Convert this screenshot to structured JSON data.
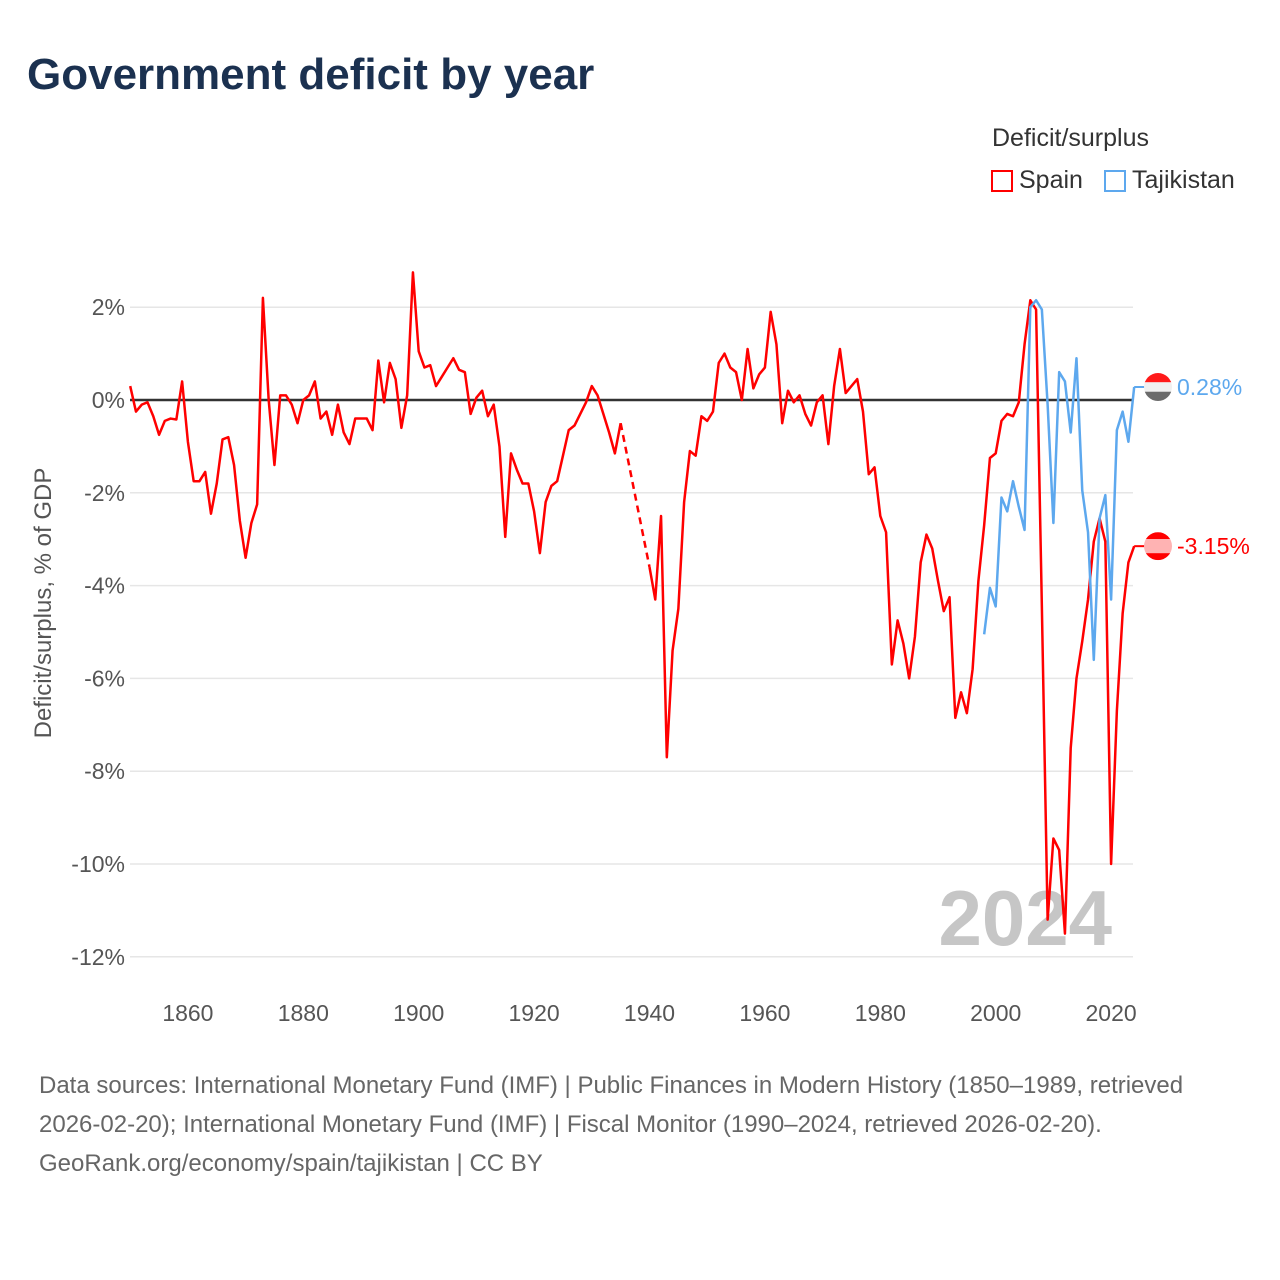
{
  "title": "Government deficit by year",
  "legend": {
    "title": "Deficit/surplus",
    "items": [
      {
        "label": "Spain",
        "color": "#ff0000"
      },
      {
        "label": "Tajikistan",
        "color": "#5da8ee"
      }
    ]
  },
  "footer": {
    "sources": "Data sources: International Monetary Fund (IMF) | Public Finances in Modern History (1850–1989, retrieved 2026-02-20); International Monetary Fund (IMF) | Fiscal Monitor (1990–2024, retrieved 2026-02-20).",
    "credit": "GeoRank.org/economy/spain/tajikistan | CC BY"
  },
  "chart_data": {
    "type": "line",
    "title": "Government deficit by year",
    "ylabel": "Deficit/surplus, % of GDP",
    "xlabel": "",
    "xlim": [
      1850,
      2024
    ],
    "ylim": [
      -12.5,
      3
    ],
    "x_ticks": [
      1860,
      1880,
      1900,
      1920,
      1940,
      1960,
      1980,
      2000,
      2020
    ],
    "y_ticks": [
      2,
      0,
      -2,
      -4,
      -6,
      -8,
      -10,
      -12
    ],
    "y_tick_labels": [
      "2%",
      "0%",
      "-2%",
      "-4%",
      "-6%",
      "-8%",
      "-10%",
      "-12%"
    ],
    "current_year_label": "2024",
    "legend_position": "top-right",
    "series": [
      {
        "name": "Spain",
        "color": "#ff0000",
        "start_year": 1850,
        "end_label": "-3.15%",
        "values": [
          0.3,
          -0.25,
          -0.1,
          -0.05,
          -0.35,
          -0.75,
          -0.45,
          -0.4,
          -0.42,
          0.4,
          -0.9,
          -1.75,
          -1.75,
          -1.55,
          -2.45,
          -1.8,
          -0.85,
          -0.8,
          -1.4,
          -2.6,
          -3.4,
          -2.65,
          -2.25,
          2.2,
          0.0,
          -1.4,
          0.1,
          0.1,
          -0.1,
          -0.5,
          0.0,
          0.1,
          0.4,
          -0.4,
          -0.25,
          -0.75,
          -0.1,
          -0.7,
          -0.95,
          -0.4,
          -0.4,
          -0.4,
          -0.65,
          0.85,
          -0.05,
          0.8,
          0.45,
          -0.6,
          0.1,
          2.75,
          1.05,
          0.7,
          0.75,
          0.3,
          0.5,
          0.7,
          0.9,
          0.65,
          0.6,
          -0.3,
          0.05,
          0.2,
          -0.35,
          -0.1,
          -1.0,
          -2.95,
          -1.15,
          -1.5,
          -1.8,
          -1.8,
          -2.4,
          -3.3,
          -2.2,
          -1.85,
          -1.75,
          -1.2,
          -0.65,
          -0.55,
          -0.3,
          -0.05,
          0.3,
          0.1,
          -0.3,
          -0.7,
          -1.15,
          -0.5,
          null,
          null,
          null,
          null,
          -3.6,
          -4.3,
          -2.5,
          -7.7,
          -5.4,
          -4.5,
          -2.2,
          -1.1,
          -1.2,
          -0.35,
          -0.45,
          -0.25,
          0.8,
          1.0,
          0.7,
          0.6,
          0.0,
          1.1,
          0.25,
          0.55,
          0.7,
          1.9,
          1.2,
          -0.5,
          0.2,
          -0.05,
          0.1,
          -0.3,
          -0.55,
          -0.05,
          0.1,
          -0.95,
          0.3,
          1.1,
          0.15,
          0.3,
          0.45,
          -0.25,
          -1.6,
          -1.45,
          -2.5,
          -2.85,
          -5.7,
          -4.75,
          -5.25,
          -6.0,
          -5.1,
          -3.5,
          -2.9,
          -3.2,
          -3.9,
          -4.55,
          -4.25,
          -6.85,
          -6.3,
          -6.75,
          -5.8,
          -3.9,
          -2.7,
          -1.25,
          -1.15,
          -0.45,
          -0.3,
          -0.35,
          -0.05,
          1.2,
          2.15,
          1.95,
          -4.45,
          -11.2,
          -9.45,
          -9.7,
          -11.5,
          -7.5,
          -6.0,
          -5.2,
          -4.3,
          -3.05,
          -2.55,
          -3.05,
          -10.0,
          -6.7,
          -4.6,
          -3.5,
          -3.15
        ]
      },
      {
        "name": "Tajikistan",
        "color": "#5da8ee",
        "start_year": 1998,
        "end_label": "0.28%",
        "values": [
          -5.05,
          -4.05,
          -4.45,
          -2.1,
          -2.4,
          -1.75,
          -2.3,
          -2.8,
          2.0,
          2.15,
          1.95,
          -0.1,
          -2.65,
          0.6,
          0.4,
          -0.7,
          0.9,
          -1.95,
          -2.85,
          -5.6,
          -2.55,
          -2.05,
          -4.3,
          -0.65,
          -0.25,
          -0.9,
          0.28
        ]
      }
    ]
  }
}
